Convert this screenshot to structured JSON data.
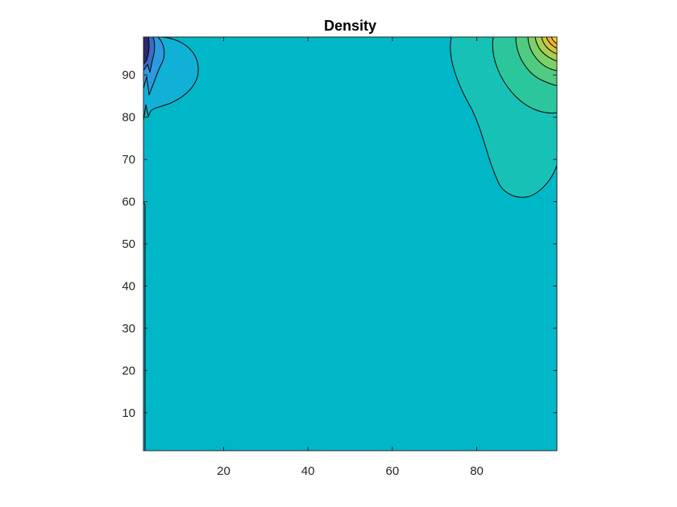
{
  "chart_data": {
    "type": "contour",
    "title": "Density",
    "xlabel": "",
    "ylabel": "",
    "xlim": [
      1,
      99
    ],
    "ylim": [
      1,
      99
    ],
    "xticks": [
      20,
      40,
      60,
      80
    ],
    "yticks": [
      10,
      20,
      30,
      40,
      50,
      60,
      70,
      80,
      90
    ],
    "grid": false,
    "colors": {
      "background": "#00b7c8",
      "low_region_outer": "#11b0d6",
      "low_region_inner": "#2a9be0",
      "low_region_core": "#3b6cc8",
      "low_region_deep": "#2a2a6a",
      "high_band_1": "#17c1b6",
      "high_band_2": "#2cc69c",
      "high_band_3": "#4fcb82",
      "high_band_4": "#7bd067",
      "high_band_5": "#a6cf4e",
      "high_band_6": "#d1c63a",
      "high_band_7": "#f2b22e",
      "high_band_8": "#f7d828"
    },
    "features": {
      "high_peak_location": [
        99,
        99
      ],
      "low_peak_location": [
        1,
        99
      ]
    }
  }
}
